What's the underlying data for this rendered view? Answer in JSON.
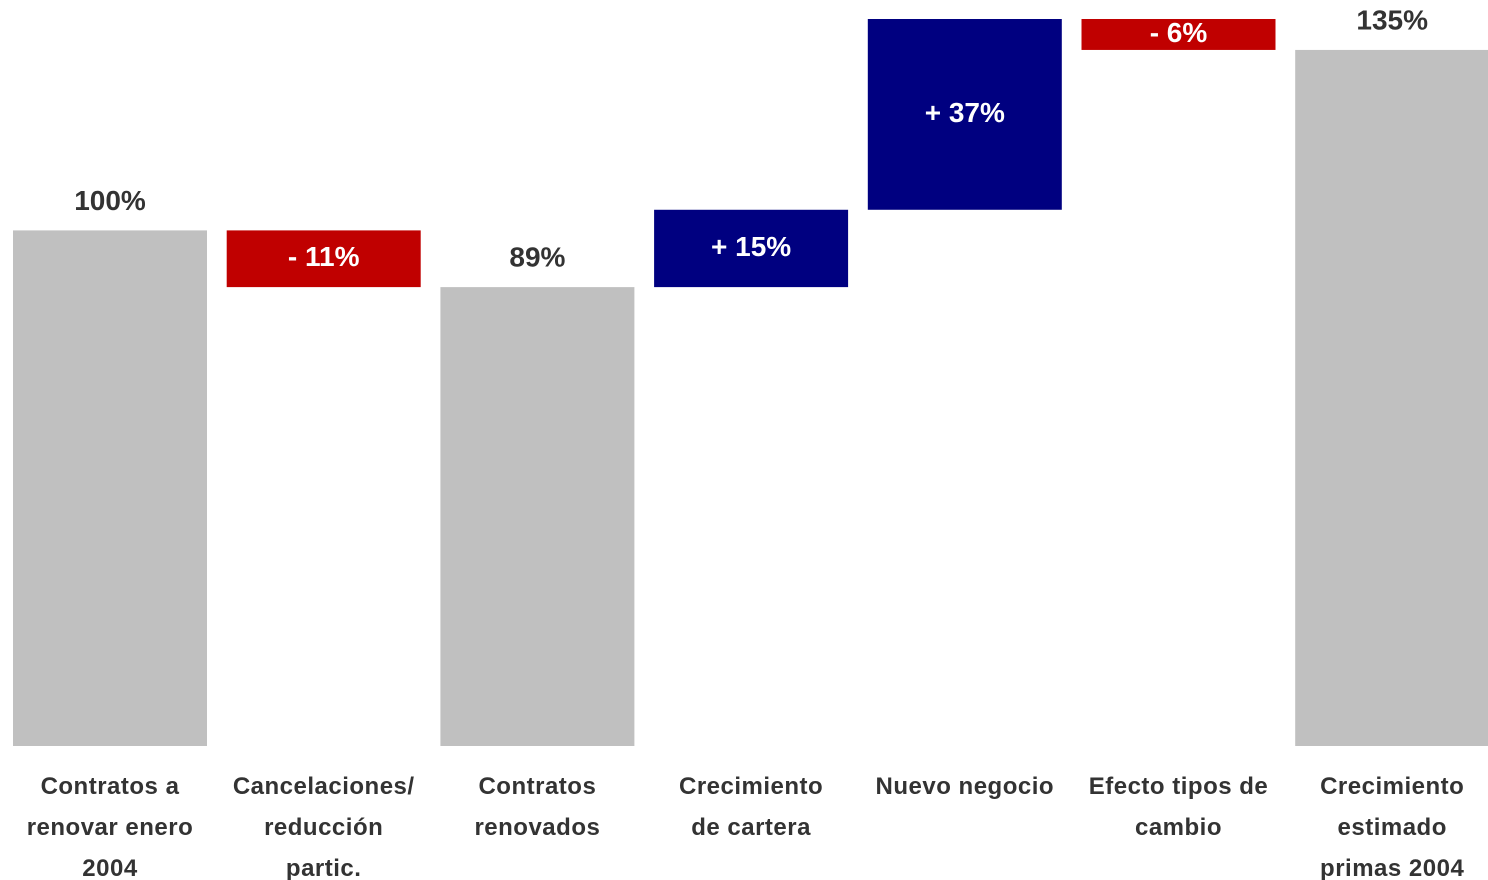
{
  "chart_data": {
    "type": "waterfall",
    "categories": [
      "Contratos a\nrenovar enero\n2004",
      "Cancelaciones/\nreducción\npartic.",
      "Contratos\nrenovados",
      "Crecimiento\nde cartera",
      "Nuevo negocio",
      "Efecto tipos de\ncambio",
      "Crecimiento\nestimado\nprimas 2004"
    ],
    "values": [
      100,
      -11,
      89,
      15,
      37,
      -6,
      135
    ],
    "value_labels": [
      "100%",
      "- 11%",
      "89%",
      "+ 15%",
      "+ 37%",
      "- 6%",
      "135%"
    ],
    "measure": [
      "total",
      "relative",
      "total",
      "relative",
      "relative",
      "relative",
      "total"
    ],
    "colors": {
      "total": "#c0c0c0",
      "increase": "#000080",
      "decrease": "#c00000"
    }
  }
}
